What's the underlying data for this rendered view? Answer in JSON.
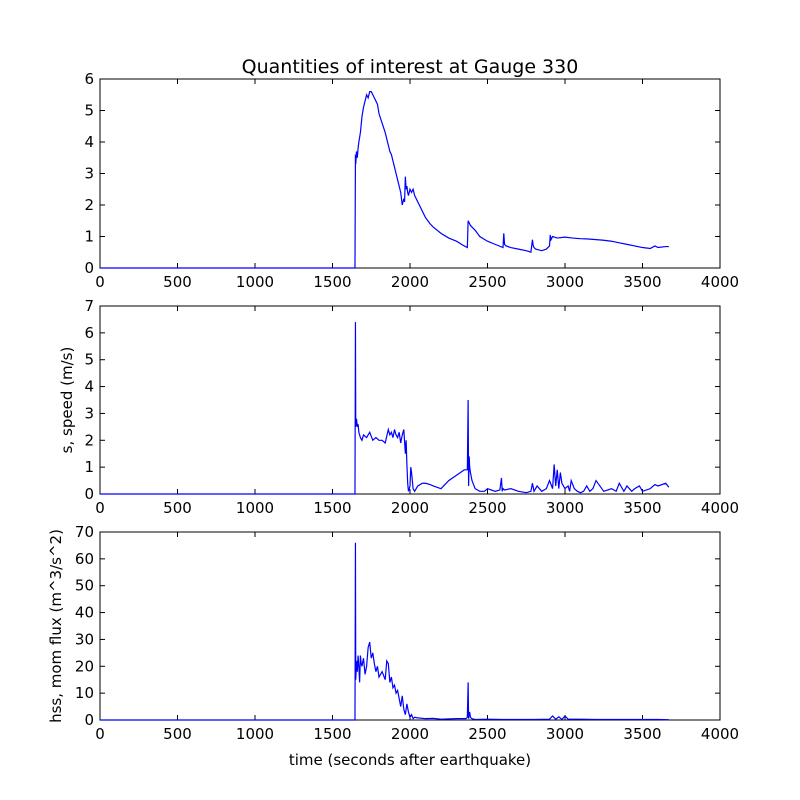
{
  "figure": {
    "title": "Quantities of interest at Gauge 330",
    "xlabel": "time (seconds after earthquake)"
  },
  "chart_data": [
    {
      "type": "line",
      "title": "Quantities of interest at Gauge 330",
      "xlabel": "",
      "ylabel": "",
      "xlim": [
        0,
        4000
      ],
      "ylim": [
        0,
        6
      ],
      "xticks": [
        "0",
        "500",
        "1000",
        "1500",
        "2000",
        "2500",
        "3000",
        "3500",
        "4000"
      ],
      "yticks": [
        "0",
        "1",
        "2",
        "3",
        "4",
        "5",
        "6"
      ],
      "grid": false,
      "color": "#0000ff",
      "x": [
        0,
        1640,
        1645,
        1648,
        1650,
        1655,
        1660,
        1665,
        1670,
        1680,
        1690,
        1700,
        1710,
        1720,
        1730,
        1740,
        1750,
        1760,
        1770,
        1780,
        1790,
        1800,
        1820,
        1840,
        1860,
        1870,
        1880,
        1890,
        1900,
        1910,
        1920,
        1930,
        1940,
        1950,
        1960,
        1965,
        1970,
        1975,
        1980,
        1985,
        1990,
        2000,
        2010,
        2020,
        2030,
        2040,
        2060,
        2080,
        2100,
        2130,
        2150,
        2200,
        2250,
        2300,
        2350,
        2370,
        2375,
        2380,
        2385,
        2390,
        2400,
        2420,
        2450,
        2500,
        2550,
        2600,
        2605,
        2610,
        2620,
        2650,
        2700,
        2750,
        2780,
        2790,
        2795,
        2800,
        2810,
        2850,
        2880,
        2900,
        2905,
        2910,
        2920,
        2950,
        3000,
        3050,
        3100,
        3150,
        3200,
        3250,
        3300,
        3350,
        3400,
        3450,
        3500,
        3550,
        3580,
        3600,
        3650,
        3670
      ],
      "values": [
        0,
        0,
        0,
        3.6,
        3.3,
        3.7,
        3.5,
        3.8,
        4.0,
        4.3,
        4.8,
        5.1,
        5.3,
        5.5,
        5.4,
        5.6,
        5.6,
        5.5,
        5.4,
        5.3,
        5.2,
        4.9,
        4.6,
        4.3,
        3.9,
        3.7,
        3.6,
        3.4,
        3.2,
        3.0,
        2.8,
        2.6,
        2.4,
        2.0,
        2.2,
        2.1,
        2.9,
        2.5,
        2.6,
        2.4,
        2.3,
        2.5,
        2.4,
        2.5,
        2.3,
        2.2,
        2.0,
        1.8,
        1.6,
        1.4,
        1.3,
        1.1,
        0.95,
        0.85,
        0.7,
        0.65,
        1.5,
        1.45,
        1.4,
        1.35,
        1.3,
        1.2,
        1.0,
        0.85,
        0.75,
        0.65,
        1.1,
        0.75,
        0.7,
        0.65,
        0.6,
        0.55,
        0.5,
        0.9,
        0.7,
        0.65,
        0.6,
        0.55,
        0.6,
        0.7,
        1.05,
        0.9,
        1.0,
        0.95,
        0.98,
        0.95,
        0.93,
        0.92,
        0.9,
        0.88,
        0.85,
        0.8,
        0.75,
        0.7,
        0.65,
        0.62,
        0.7,
        0.65,
        0.68,
        0.68
      ]
    },
    {
      "type": "line",
      "title": "",
      "xlabel": "",
      "ylabel": "s, speed (m/s)",
      "xlim": [
        0,
        4000
      ],
      "ylim": [
        0,
        7
      ],
      "xticks": [
        "0",
        "500",
        "1000",
        "1500",
        "2000",
        "2500",
        "3000",
        "3500",
        "4000"
      ],
      "yticks": [
        "0",
        "1",
        "2",
        "3",
        "4",
        "5",
        "6",
        "7"
      ],
      "grid": false,
      "color": "#0000ff",
      "x": [
        0,
        1640,
        1645,
        1648,
        1650,
        1655,
        1660,
        1665,
        1670,
        1680,
        1690,
        1700,
        1720,
        1740,
        1760,
        1780,
        1800,
        1820,
        1840,
        1860,
        1870,
        1880,
        1890,
        1900,
        1910,
        1920,
        1930,
        1940,
        1950,
        1960,
        1970,
        1975,
        1980,
        1985,
        1990,
        2000,
        2005,
        2010,
        2020,
        2030,
        2050,
        2080,
        2100,
        2130,
        2150,
        2200,
        2250,
        2300,
        2350,
        2370,
        2375,
        2378,
        2382,
        2385,
        2390,
        2400,
        2420,
        2450,
        2480,
        2500,
        2550,
        2580,
        2590,
        2595,
        2600,
        2610,
        2650,
        2700,
        2750,
        2780,
        2790,
        2800,
        2820,
        2850,
        2880,
        2900,
        2920,
        2930,
        2940,
        2950,
        2960,
        2970,
        2980,
        3000,
        3020,
        3030,
        3040,
        3060,
        3080,
        3100,
        3120,
        3140,
        3160,
        3180,
        3200,
        3250,
        3300,
        3330,
        3350,
        3380,
        3400,
        3430,
        3450,
        3480,
        3500,
        3550,
        3580,
        3600,
        3650,
        3670
      ],
      "values": [
        0,
        0,
        0,
        6.4,
        2.5,
        2.8,
        2.5,
        2.6,
        2.3,
        2.1,
        2.0,
        2.2,
        2.1,
        2.3,
        2.0,
        2.1,
        2.0,
        2.0,
        1.9,
        2.4,
        2.2,
        2.3,
        2.1,
        2.4,
        2.2,
        2.1,
        2.3,
        1.9,
        2.2,
        2.4,
        1.5,
        2.0,
        1.1,
        0.4,
        0.1,
        0.3,
        1.0,
        0.8,
        0.2,
        0.1,
        0.3,
        0.4,
        0.4,
        0.35,
        0.3,
        0.2,
        0.5,
        0.7,
        0.9,
        0.9,
        3.5,
        0.3,
        1.4,
        1.0,
        0.8,
        0.5,
        0.2,
        0.1,
        0.1,
        0.2,
        0.1,
        0.15,
        0.6,
        0.1,
        0.2,
        0.15,
        0.2,
        0.1,
        0.05,
        0.1,
        0.4,
        0.1,
        0.3,
        0.1,
        0.2,
        0.5,
        0.2,
        1.1,
        0.3,
        0.9,
        0.2,
        0.8,
        0.4,
        0.2,
        0.3,
        0.1,
        0.5,
        0.2,
        0.1,
        0.05,
        0.1,
        0.3,
        0.1,
        0.2,
        0.5,
        0.1,
        0.2,
        0.1,
        0.4,
        0.1,
        0.3,
        0.1,
        0.2,
        0.3,
        0.1,
        0.2,
        0.35,
        0.3,
        0.4,
        0.25
      ]
    },
    {
      "type": "line",
      "title": "",
      "xlabel": "time (seconds after earthquake)",
      "ylabel": "hss, mom flux (m^3/s^2)",
      "xlim": [
        0,
        4000
      ],
      "ylim": [
        0,
        70
      ],
      "xticks": [
        "0",
        "500",
        "1000",
        "1500",
        "2000",
        "2500",
        "3000",
        "3500",
        "4000"
      ],
      "yticks": [
        "0",
        "10",
        "20",
        "30",
        "40",
        "50",
        "60",
        "70"
      ],
      "grid": false,
      "color": "#0000ff",
      "x": [
        0,
        1640,
        1645,
        1648,
        1650,
        1655,
        1660,
        1665,
        1670,
        1675,
        1680,
        1685,
        1690,
        1700,
        1710,
        1720,
        1730,
        1740,
        1750,
        1760,
        1770,
        1780,
        1790,
        1800,
        1820,
        1840,
        1850,
        1860,
        1870,
        1880,
        1890,
        1900,
        1910,
        1920,
        1930,
        1940,
        1950,
        1960,
        1970,
        1980,
        1990,
        2000,
        2010,
        2020,
        2030,
        2050,
        2100,
        2150,
        2200,
        2300,
        2360,
        2370,
        2375,
        2378,
        2385,
        2390,
        2400,
        2420,
        2500,
        2600,
        2800,
        2900,
        2920,
        2940,
        2960,
        2980,
        3000,
        3020,
        3100,
        3200,
        3400,
        3600,
        3670
      ],
      "values": [
        0,
        0,
        0,
        66,
        15,
        22,
        18,
        24,
        20,
        14,
        24,
        21,
        20,
        23,
        17,
        20,
        27,
        29,
        23,
        25,
        21,
        18,
        20,
        16,
        18,
        15,
        22,
        21,
        14,
        16,
        12,
        13,
        10,
        11,
        8,
        5,
        9,
        4,
        2,
        6,
        3,
        1,
        2,
        0.5,
        1,
        0.8,
        0.5,
        0.6,
        0.3,
        0.5,
        0.5,
        1,
        14,
        0.5,
        3,
        1,
        0.5,
        0.2,
        0.3,
        0.2,
        0.2,
        0.3,
        1.5,
        0.3,
        1.2,
        0.2,
        1.5,
        0.3,
        0.3,
        0.2,
        0.2,
        0.2,
        0.1
      ]
    }
  ]
}
